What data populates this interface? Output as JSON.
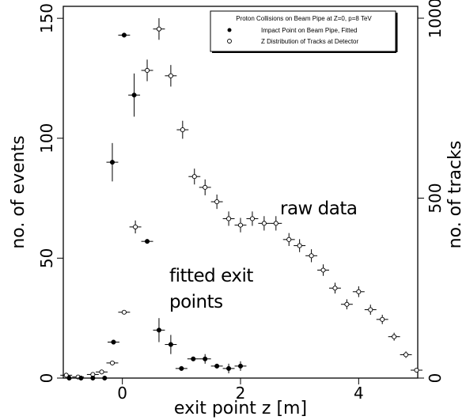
{
  "chart_data": {
    "type": "scatter",
    "title": "",
    "xlabel": "exit point z [m]",
    "ylabel_left": "no. of events",
    "ylabel_right": "no. of tracks",
    "xlim": [
      -1.0,
      5.0
    ],
    "ylim_left": [
      0,
      155
    ],
    "ylim_right": [
      0,
      1033
    ],
    "x_ticks": [
      0,
      2,
      4
    ],
    "y_ticks_left": [
      0,
      50,
      100,
      150
    ],
    "y_ticks_right": [
      0,
      500,
      1000
    ],
    "legend": {
      "title": "Proton Collisions on Beam Pipe at Z=0, p=8 TeV",
      "position": "top-right",
      "entries": [
        {
          "marker": "filled-circle",
          "label": "Impact Point on Beam Pipe, Fitted"
        },
        {
          "marker": "open-circle",
          "label": "Z Distribution of Tracks at Detector"
        }
      ]
    },
    "annotations": [
      {
        "text": "raw data"
      },
      {
        "text": "fitted exit"
      },
      {
        "text": "points"
      }
    ],
    "series": [
      {
        "name": "Impact Point on Beam Pipe, Fitted",
        "axis": "left",
        "marker": "filled",
        "points": [
          {
            "x": -0.9,
            "y": 0,
            "xerr": 0.1,
            "yerr": 0
          },
          {
            "x": -0.7,
            "y": 0,
            "xerr": 0.1,
            "yerr": 0
          },
          {
            "x": -0.5,
            "y": 0,
            "xerr": 0.1,
            "yerr": 0
          },
          {
            "x": -0.3,
            "y": 0,
            "xerr": 0.1,
            "yerr": 0
          },
          {
            "x": -0.15,
            "y": 15,
            "xerr": 0.1,
            "yerr": 0
          },
          {
            "x": 0.03,
            "y": 143,
            "xerr": 0.1,
            "yerr": 0
          },
          {
            "x": -0.17,
            "y": 90,
            "xerr": 0.1,
            "yerr": 8
          },
          {
            "x": 0.2,
            "y": 118,
            "xerr": 0.1,
            "yerr": 9
          },
          {
            "x": 0.42,
            "y": 57,
            "xerr": 0.1,
            "yerr": 0
          },
          {
            "x": 0.62,
            "y": 20,
            "xerr": 0.1,
            "yerr": 5
          },
          {
            "x": 0.82,
            "y": 14,
            "xerr": 0.1,
            "yerr": 4
          },
          {
            "x": 1.0,
            "y": 4,
            "xerr": 0.1,
            "yerr": 0
          },
          {
            "x": 1.2,
            "y": 8,
            "xerr": 0.1,
            "yerr": 0
          },
          {
            "x": 1.4,
            "y": 8,
            "xerr": 0.1,
            "yerr": 2
          },
          {
            "x": 1.6,
            "y": 5,
            "xerr": 0.1,
            "yerr": 0
          },
          {
            "x": 1.8,
            "y": 4,
            "xerr": 0.1,
            "yerr": 2
          },
          {
            "x": 2.0,
            "y": 5,
            "xerr": 0.1,
            "yerr": 2
          }
        ]
      },
      {
        "name": "Z Distribution of Tracks at Detector",
        "axis": "right",
        "marker": "open",
        "points": [
          {
            "x": -0.95,
            "y": 8,
            "xerr": 0.1,
            "yerr": 0
          },
          {
            "x": -0.75,
            "y": 3,
            "xerr": 0.1,
            "yerr": 0
          },
          {
            "x": -0.5,
            "y": 10,
            "xerr": 0.1,
            "yerr": 0
          },
          {
            "x": -0.35,
            "y": 17,
            "xerr": 0.1,
            "yerr": 0
          },
          {
            "x": -0.17,
            "y": 42,
            "xerr": 0.1,
            "yerr": 0
          },
          {
            "x": 0.03,
            "y": 183,
            "xerr": 0.1,
            "yerr": 0
          },
          {
            "x": 0.22,
            "y": 420,
            "xerr": 0.1,
            "yerr": 18
          },
          {
            "x": 0.42,
            "y": 855,
            "xerr": 0.1,
            "yerr": 30
          },
          {
            "x": 0.62,
            "y": 970,
            "xerr": 0.1,
            "yerr": 30
          },
          {
            "x": 0.82,
            "y": 840,
            "xerr": 0.1,
            "yerr": 30
          },
          {
            "x": 1.02,
            "y": 690,
            "xerr": 0.1,
            "yerr": 25
          },
          {
            "x": 1.22,
            "y": 560,
            "xerr": 0.1,
            "yerr": 22
          },
          {
            "x": 1.4,
            "y": 530,
            "xerr": 0.1,
            "yerr": 22
          },
          {
            "x": 1.6,
            "y": 490,
            "xerr": 0.1,
            "yerr": 20
          },
          {
            "x": 1.8,
            "y": 443,
            "xerr": 0.1,
            "yerr": 20
          },
          {
            "x": 2.0,
            "y": 425,
            "xerr": 0.1,
            "yerr": 20
          },
          {
            "x": 2.2,
            "y": 443,
            "xerr": 0.1,
            "yerr": 20
          },
          {
            "x": 2.4,
            "y": 430,
            "xerr": 0.1,
            "yerr": 20
          },
          {
            "x": 2.6,
            "y": 430,
            "xerr": 0.1,
            "yerr": 20
          },
          {
            "x": 2.82,
            "y": 385,
            "xerr": 0.1,
            "yerr": 18
          },
          {
            "x": 3.0,
            "y": 368,
            "xerr": 0.1,
            "yerr": 18
          },
          {
            "x": 3.2,
            "y": 340,
            "xerr": 0.1,
            "yerr": 18
          },
          {
            "x": 3.4,
            "y": 300,
            "xerr": 0.1,
            "yerr": 16
          },
          {
            "x": 3.6,
            "y": 250,
            "xerr": 0.1,
            "yerr": 15
          },
          {
            "x": 3.8,
            "y": 205,
            "xerr": 0.1,
            "yerr": 14
          },
          {
            "x": 4.0,
            "y": 240,
            "xerr": 0.1,
            "yerr": 15
          },
          {
            "x": 4.2,
            "y": 190,
            "xerr": 0.1,
            "yerr": 14
          },
          {
            "x": 4.4,
            "y": 163,
            "xerr": 0.1,
            "yerr": 13
          },
          {
            "x": 4.6,
            "y": 115,
            "xerr": 0.1,
            "yerr": 11
          },
          {
            "x": 4.8,
            "y": 65,
            "xerr": 0.1,
            "yerr": 9
          },
          {
            "x": 4.98,
            "y": 22,
            "xerr": 0.1,
            "yerr": 0
          }
        ]
      }
    ]
  }
}
